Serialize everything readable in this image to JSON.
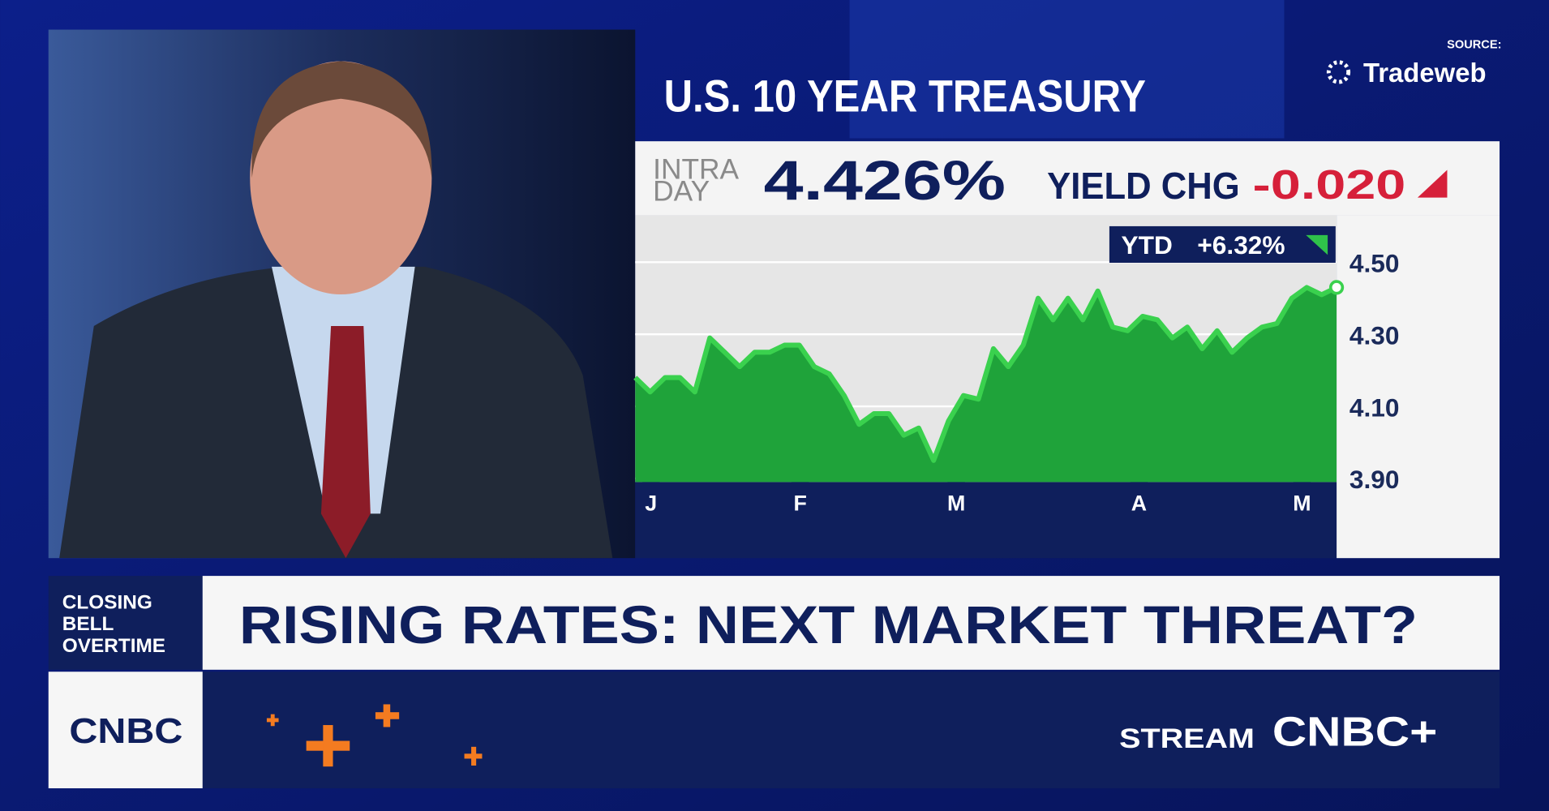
{
  "header": {
    "title": "U.S. 10 YEAR TREASURY",
    "source_label": "SOURCE:",
    "source": "Tradeweb"
  },
  "quote": {
    "label_line1": "INTRA",
    "label_line2": "DAY",
    "value": "4.426%",
    "change_label": "YIELD CHG",
    "change": "-0.020"
  },
  "chart_data": {
    "type": "area",
    "values": [
      4.18,
      4.14,
      4.18,
      4.18,
      4.14,
      4.29,
      4.25,
      4.21,
      4.25,
      4.25,
      4.27,
      4.27,
      4.21,
      4.19,
      4.13,
      4.05,
      4.08,
      4.08,
      4.02,
      4.04,
      3.95,
      4.06,
      4.13,
      4.12,
      4.26,
      4.21,
      4.27,
      4.4,
      4.34,
      4.4,
      4.34,
      4.42,
      4.32,
      4.31,
      4.35,
      4.34,
      4.29,
      4.32,
      4.26,
      4.31,
      4.25,
      4.29,
      4.32,
      4.33,
      4.4,
      4.43,
      4.41,
      4.43
    ],
    "color": "#1fa33a",
    "line_color": "#3ad14e",
    "ylim": [
      3.89,
      4.63
    ],
    "yticks": [
      {
        "value": 4.5,
        "label": "4.50"
      },
      {
        "value": 4.3,
        "label": "4.30"
      },
      {
        "value": 4.1,
        "label": "4.10"
      },
      {
        "value": 3.9,
        "label": "3.90"
      }
    ],
    "grid": true,
    "month_labels": [
      "J",
      "F",
      "M",
      "A",
      "M"
    ],
    "ytd_label": "YTD",
    "ytd_change": "+6.32%"
  },
  "lower_third": {
    "show": [
      "CLOSING",
      "BELL",
      "OVERTIME"
    ],
    "headline": "RISING RATES: NEXT MARKET THREAT?"
  },
  "footer": {
    "network": "CNBC",
    "stream": "STREAM",
    "stream_brand": "CNBC+"
  }
}
